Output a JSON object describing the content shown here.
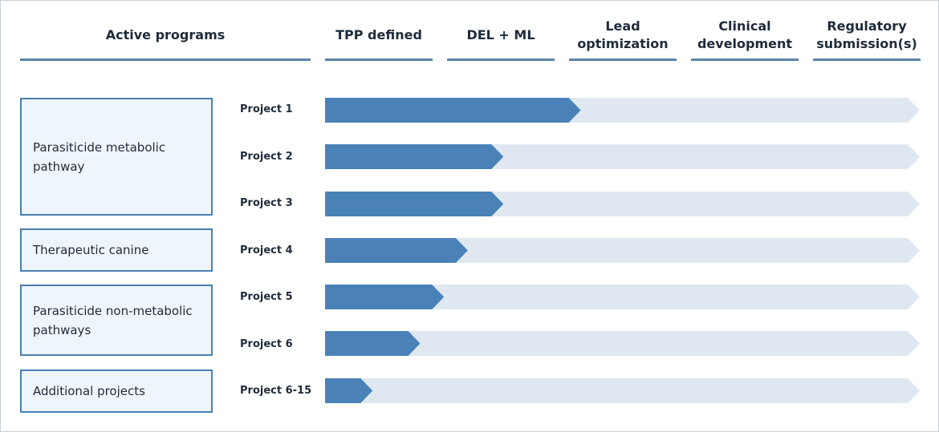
{
  "header": {
    "active_programs": "Active programs",
    "stages": [
      {
        "line1": "TPP defined",
        "line2": ""
      },
      {
        "line1": "DEL + ML",
        "line2": ""
      },
      {
        "line1": "Lead",
        "line2": "optimization"
      },
      {
        "line1": "Clinical",
        "line2": "development"
      },
      {
        "line1": "Regulatory",
        "line2": "submission(s)"
      }
    ]
  },
  "groups": [
    {
      "line1": "Parasiticide metabolic",
      "line2": "pathway"
    },
    {
      "line1": "Therapeutic canine",
      "line2": ""
    },
    {
      "line1": "Parasiticide non-metabolic",
      "line2": "pathways"
    },
    {
      "line1": "Additional projects",
      "line2": ""
    }
  ],
  "projects": [
    {
      "label": "Project 1",
      "progress": 0.43
    },
    {
      "label": "Project 2",
      "progress": 0.3
    },
    {
      "label": "Project 3",
      "progress": 0.3
    },
    {
      "label": "Project 4",
      "progress": 0.24
    },
    {
      "label": "Project 5",
      "progress": 0.2
    },
    {
      "label": "Project 6",
      "progress": 0.16
    },
    {
      "label": "Project 6-15",
      "progress": 0.08
    }
  ],
  "colors": {
    "progress_fill": "#4a82b8",
    "track_fill": "#dfe8f0",
    "header_rule": "#5b84ad",
    "group_border": "#4a7fb3",
    "group_fill": "#eef5fc"
  }
}
